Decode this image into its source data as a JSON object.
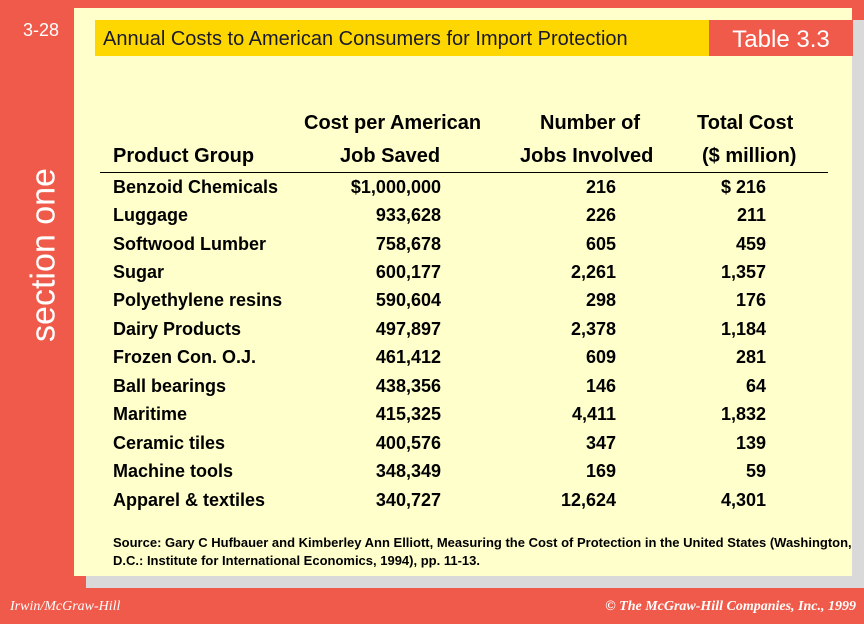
{
  "slide_number": "3-28",
  "section_label": "section one",
  "title": "Annual Costs to American Consumers for Import Protection",
  "table_label": "Table 3.3",
  "columns": {
    "product": {
      "line1": "",
      "line2": "Product Group"
    },
    "cost": {
      "line1": "Cost per American",
      "line2": "Job Saved"
    },
    "jobs": {
      "line1": "Number of",
      "line2": "Jobs Involved"
    },
    "total": {
      "line1": "Total Cost",
      "line2": "($ million)"
    }
  },
  "rows": [
    {
      "product": "Benzoid Chemicals",
      "cost": "$1,000,000",
      "jobs": "216",
      "total": "$ 216"
    },
    {
      "product": "Luggage",
      "cost": "933,628",
      "jobs": "226",
      "total": "211"
    },
    {
      "product": "Softwood Lumber",
      "cost": "758,678",
      "jobs": "605",
      "total": "459"
    },
    {
      "product": "Sugar",
      "cost": "600,177",
      "jobs": "2,261",
      "total": "1,357"
    },
    {
      "product": "Polyethylene resins",
      "cost": "590,604",
      "jobs": "298",
      "total": "176"
    },
    {
      "product": "Dairy Products",
      "cost": "497,897",
      "jobs": "2,378",
      "total": "1,184"
    },
    {
      "product": "Frozen Con. O.J.",
      "cost": "461,412",
      "jobs": "609",
      "total": "281"
    },
    {
      "product": "Ball bearings",
      "cost": "438,356",
      "jobs": "146",
      "total": "64"
    },
    {
      "product": "Maritime",
      "cost": "415,325",
      "jobs": "4,411",
      "total": "1,832"
    },
    {
      "product": "Ceramic tiles",
      "cost": "400,576",
      "jobs": "347",
      "total": "139"
    },
    {
      "product": "Machine tools",
      "cost": "348,349",
      "jobs": "169",
      "total": "59"
    },
    {
      "product": "Apparel & textiles",
      "cost": "340,727",
      "jobs": "12,624",
      "total": "4,301"
    }
  ],
  "source_note": "Source: Gary C Hufbauer and Kimberley Ann Elliott, Measuring the Cost of Protection in the United States (Washington, D.C.: Institute for International Economics, 1994), pp. 11-13.",
  "footer": {
    "publisher": "Irwin/McGraw-Hill",
    "copyright": "© The McGraw-Hill Companies, Inc., 1999"
  },
  "colors": {
    "background": "#f05a4a",
    "panel": "#ffffcc",
    "title_bar": "#ffd700",
    "text": "#000000"
  }
}
